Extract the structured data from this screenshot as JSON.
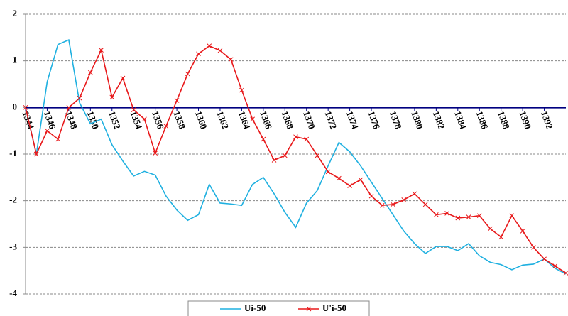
{
  "chart_data": {
    "type": "line",
    "x": [
      1344,
      1345,
      1346,
      1347,
      1348,
      1349,
      1350,
      1351,
      1352,
      1353,
      1354,
      1355,
      1356,
      1357,
      1358,
      1359,
      1360,
      1361,
      1362,
      1363,
      1364,
      1365,
      1366,
      1367,
      1368,
      1369,
      1370,
      1371,
      1372,
      1373,
      1374,
      1375,
      1376,
      1377,
      1378,
      1379,
      1380,
      1381,
      1382,
      1383,
      1384,
      1385,
      1386,
      1387,
      1388,
      1389,
      1390,
      1391,
      1392,
      1393,
      1394
    ],
    "xlim": [
      1344,
      1394
    ],
    "xticks": [
      1344,
      1346,
      1348,
      1350,
      1352,
      1354,
      1356,
      1358,
      1360,
      1362,
      1364,
      1366,
      1368,
      1370,
      1372,
      1374,
      1376,
      1378,
      1380,
      1382,
      1384,
      1386,
      1388,
      1390,
      1392
    ],
    "ylim": [
      -4,
      2
    ],
    "yticks": [
      2,
      1,
      0,
      -1,
      -2,
      -3,
      -4
    ],
    "grid": true,
    "legend": "bottom",
    "series": [
      {
        "name": "Ui-50",
        "color": "#1fb0e0",
        "marker": "none",
        "values": [
          0,
          -1.0,
          0.55,
          1.35,
          1.45,
          0.1,
          -0.35,
          -0.25,
          -0.8,
          -1.15,
          -1.47,
          -1.37,
          -1.45,
          -1.9,
          -2.2,
          -2.42,
          -2.3,
          -1.65,
          -2.05,
          -2.07,
          -2.1,
          -1.65,
          -1.5,
          -1.85,
          -2.25,
          -2.57,
          -2.05,
          -1.78,
          -1.25,
          -0.75,
          -0.95,
          -1.25,
          -1.6,
          -1.95,
          -2.3,
          -2.65,
          -2.92,
          -3.13,
          -2.98,
          -2.98,
          -3.07,
          -2.92,
          -3.18,
          -3.32,
          -3.37,
          -3.48,
          -3.38,
          -3.36,
          -3.25,
          -3.45,
          -3.57
        ]
      },
      {
        "name": "U'i-50",
        "color": "#e8181a",
        "marker": "x",
        "values": [
          0,
          -1.0,
          -0.5,
          -0.68,
          0.0,
          0.2,
          0.75,
          1.23,
          0.22,
          0.63,
          -0.05,
          -0.25,
          -0.98,
          -0.4,
          0.15,
          0.72,
          1.15,
          1.32,
          1.22,
          1.03,
          0.37,
          -0.25,
          -0.68,
          -1.13,
          -1.03,
          -0.63,
          -0.68,
          -1.03,
          -1.38,
          -1.52,
          -1.68,
          -1.55,
          -1.9,
          -2.1,
          -2.08,
          -1.98,
          -1.85,
          -2.08,
          -2.3,
          -2.27,
          -2.37,
          -2.35,
          -2.32,
          -2.6,
          -2.78,
          -2.32,
          -2.65,
          -3.0,
          -3.25,
          -3.4,
          -3.55
        ]
      }
    ]
  }
}
